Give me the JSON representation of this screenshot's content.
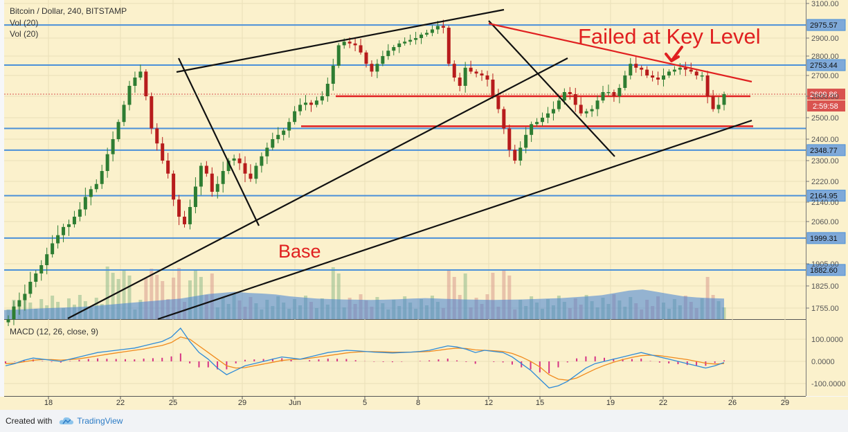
{
  "header": {
    "symbol_line": "Bitcoin / Dollar, 240, BITSTAMP",
    "vol_lines": [
      "Vol (20)",
      "Vol (20)"
    ]
  },
  "annotations": {
    "failed_text": "Failed at Key Level",
    "base_text": "Base"
  },
  "footer": {
    "created_with": "Created with",
    "brand": "TradingView"
  },
  "colors": {
    "background": "#fbf1cc",
    "hline": "#4a90d9",
    "red_line": "#e02020",
    "black_line": "#111111",
    "candle_up": "#2e7d32",
    "candle_down": "#b71c1c",
    "volume_bar": "#5b86c5",
    "volume_ma": "#3f7fd6",
    "macd_line": "#2e8bd8",
    "signal_line": "#f08a1c",
    "hist": "#d63384",
    "price_badge": "#d9534f"
  },
  "chart_data": [
    {
      "type": "candlestick",
      "title": "Bitcoin / Dollar, 240, BITSTAMP",
      "x_ticks": [
        "18",
        "22",
        "25",
        "29",
        "Jun",
        "5",
        "8",
        "12",
        "15",
        "19",
        "22",
        "26",
        "29"
      ],
      "y_ticks": [
        "3100.00",
        "2900.00",
        "2800.00",
        "2700.00",
        "2600.00",
        "2500.00",
        "2400.00",
        "2300.00",
        "2220.00",
        "2140.00",
        "2060.00",
        "1905.00",
        "1825.00",
        "1755.00"
      ],
      "ylim": [
        1700,
        3100
      ],
      "horizontal_levels": [
        2975.57,
        2753.44,
        2348.77,
        2164.95,
        1999.31,
        1882.6
      ],
      "extra_lines_near": [
        2350
      ],
      "price_labels": [
        "2975.57",
        "2753.44",
        "2348.77",
        "2164.95",
        "1999.31",
        "1882.60"
      ],
      "current_price": "2609.86",
      "countdown": "2:59:58",
      "support_resistance_red": [
        2600,
        2460
      ],
      "close_path": [
        1720,
        1760,
        1780,
        1800,
        1840,
        1870,
        1900,
        1940,
        1980,
        2010,
        2040,
        2050,
        2080,
        2110,
        2160,
        2190,
        2210,
        2260,
        2330,
        2400,
        2480,
        2560,
        2650,
        2690,
        2720,
        2600,
        2450,
        2380,
        2300,
        2250,
        2150,
        2080,
        2050,
        2120,
        2200,
        2280,
        2250,
        2180,
        2210,
        2260,
        2300,
        2310,
        2290,
        2250,
        2230,
        2280,
        2320,
        2360,
        2400,
        2420,
        2440,
        2480,
        2530,
        2560,
        2570,
        2560,
        2580,
        2600,
        2660,
        2750,
        2860,
        2880,
        2870,
        2860,
        2820,
        2760,
        2720,
        2760,
        2800,
        2830,
        2850,
        2870,
        2880,
        2890,
        2900,
        2920,
        2930,
        2950,
        2970,
        2960,
        2760,
        2690,
        2650,
        2740,
        2720,
        2710,
        2700,
        2680,
        2600,
        2540,
        2450,
        2350,
        2300,
        2360,
        2420,
        2470,
        2480,
        2500,
        2520,
        2540,
        2580,
        2620,
        2610,
        2560,
        2520,
        2530,
        2540,
        2580,
        2620,
        2620,
        2600,
        2640,
        2700,
        2760,
        2740,
        2730,
        2700,
        2690,
        2680,
        2700,
        2720,
        2730,
        2740,
        2730,
        2720,
        2700,
        2700,
        2600,
        2540,
        2560,
        2610
      ],
      "volume_ma_series": [
        1740,
        1742,
        1745,
        1748,
        1750,
        1752,
        1755,
        1760,
        1765,
        1770,
        1775,
        1780,
        1785,
        1790,
        1800,
        1810,
        1815,
        1820,
        1815,
        1812,
        1808,
        1800,
        1795,
        1790,
        1788,
        1786,
        1785,
        1784,
        1785,
        1787,
        1790,
        1792,
        1790,
        1788,
        1786,
        1785,
        1784,
        1785,
        1786,
        1788,
        1790,
        1792,
        1796,
        1800,
        1805,
        1815,
        1825,
        1830,
        1820,
        1810,
        1800,
        1795,
        1792,
        1790
      ]
    },
    {
      "type": "line",
      "title": "MACD (12, 26, close, 9)",
      "y_ticks": [
        "100.0000",
        "0.0000",
        "-100.0000"
      ],
      "ylim": [
        -130,
        160
      ],
      "macd": [
        -20,
        -10,
        5,
        15,
        10,
        5,
        0,
        10,
        20,
        30,
        40,
        45,
        50,
        55,
        60,
        70,
        80,
        90,
        110,
        150,
        90,
        40,
        10,
        -30,
        -60,
        -40,
        -20,
        -10,
        0,
        10,
        20,
        15,
        10,
        20,
        30,
        40,
        45,
        50,
        48,
        45,
        42,
        40,
        38,
        40,
        42,
        45,
        50,
        60,
        70,
        65,
        55,
        40,
        50,
        45,
        40,
        20,
        -10,
        -40,
        -80,
        -120,
        -110,
        -90,
        -60,
        -30,
        -10,
        0,
        10,
        20,
        30,
        40,
        30,
        20,
        10,
        0,
        -10,
        -20,
        -30,
        -20,
        -5
      ],
      "signal": [
        -10,
        -8,
        -2,
        5,
        8,
        8,
        6,
        8,
        12,
        18,
        25,
        32,
        38,
        44,
        50,
        56,
        64,
        72,
        85,
        110,
        100,
        70,
        40,
        10,
        -20,
        -30,
        -28,
        -20,
        -12,
        -4,
        4,
        8,
        10,
        14,
        20,
        26,
        32,
        38,
        42,
        44,
        44,
        43,
        42,
        42,
        42,
        43,
        45,
        50,
        56,
        60,
        58,
        52,
        50,
        48,
        45,
        36,
        20,
        0,
        -25,
        -60,
        -80,
        -85,
        -75,
        -55,
        -35,
        -18,
        -4,
        8,
        18,
        26,
        28,
        26,
        20,
        14,
        8,
        0,
        -8,
        -12,
        -10
      ]
    }
  ]
}
